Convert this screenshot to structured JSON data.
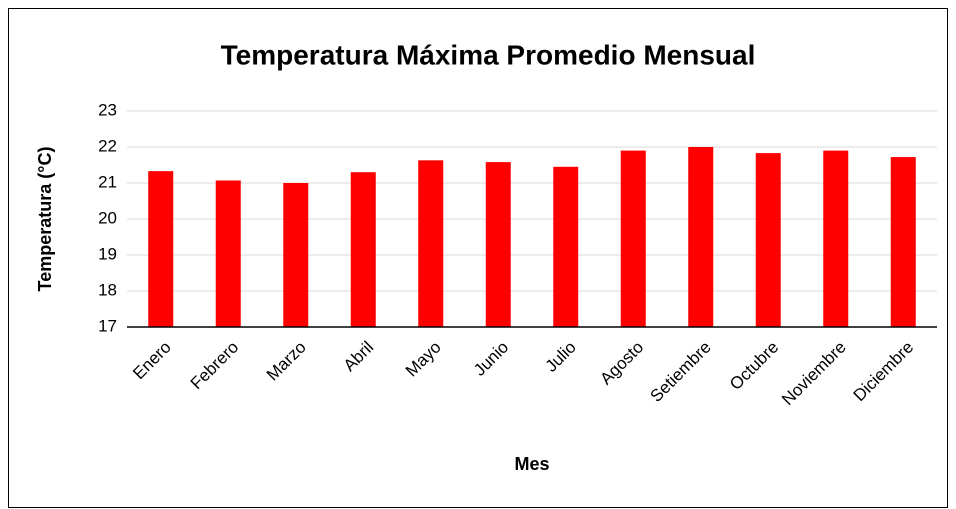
{
  "chart_data": {
    "type": "bar",
    "title": "Temperatura Máxima Promedio Mensual",
    "x_label": "Mes",
    "y_label": "Temperatura (°C)",
    "categories": [
      "Enero",
      "Febrero",
      "Marzo",
      "Abril",
      "Mayo",
      "Junio",
      "Julio",
      "Agosto",
      "Setiembre",
      "Octubre",
      "Noviembre",
      "Diciembre"
    ],
    "values": [
      21.33,
      21.07,
      21.0,
      21.3,
      21.63,
      21.58,
      21.45,
      21.9,
      22.0,
      21.83,
      21.9,
      21.72
    ],
    "color": "#ff0000",
    "ylim": [
      17,
      23
    ],
    "yticks": [
      17,
      18,
      19,
      20,
      21,
      22,
      23
    ],
    "grid": true
  }
}
